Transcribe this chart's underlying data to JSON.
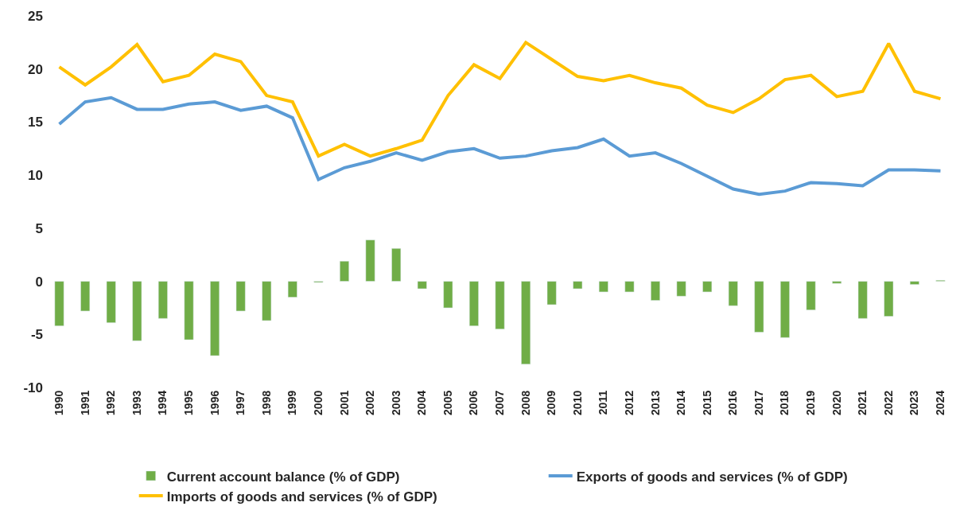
{
  "chart_data": {
    "type": "bar",
    "categories": [
      "1990",
      "1991",
      "1992",
      "1993",
      "1994",
      "1995",
      "1996",
      "1997",
      "1998",
      "1999",
      "2000",
      "2001",
      "2002",
      "2003",
      "2004",
      "2005",
      "2006",
      "2007",
      "2008",
      "2009",
      "2010",
      "2011",
      "2012",
      "2013",
      "2014",
      "2015",
      "2016",
      "2017",
      "2018",
      "2019",
      "2020",
      "2021",
      "2022",
      "2023",
      "2024"
    ],
    "series": [
      {
        "name": "Current account balance (% of GDP)",
        "color": "#70ad47",
        "values": [
          -4.2,
          -2.8,
          -3.9,
          -5.6,
          -3.5,
          -5.5,
          -7.0,
          -2.8,
          -3.7,
          -1.5,
          -0.1,
          1.9,
          3.9,
          3.1,
          -0.7,
          -2.5,
          -4.2,
          -4.5,
          -7.8,
          -2.2,
          -0.7,
          -1.0,
          -1.0,
          -1.8,
          -1.4,
          -1.0,
          -2.3,
          -4.8,
          -5.3,
          -2.7,
          -0.2,
          -3.5,
          -3.3,
          -0.3,
          0.1
        ]
      },
      {
        "name": "Exports of goods and services (% of GDP)",
        "type": "line",
        "color": "#5b9bd5",
        "values": [
          14.8,
          16.9,
          17.3,
          16.2,
          16.2,
          16.7,
          16.9,
          16.1,
          16.5,
          15.4,
          9.6,
          10.7,
          11.3,
          12.1,
          11.4,
          12.2,
          12.5,
          11.6,
          11.8,
          12.3,
          12.6,
          13.4,
          11.8,
          12.1,
          11.1,
          9.9,
          8.7,
          8.2,
          8.5,
          9.3,
          9.2,
          9.0,
          10.5,
          10.5,
          10.4
        ]
      },
      {
        "name": "Imports of goods and services (% of GDP)",
        "type": "line",
        "color": "#ffc000",
        "values": [
          20.2,
          18.5,
          20.2,
          22.3,
          18.8,
          19.4,
          21.4,
          20.7,
          17.5,
          16.9,
          11.8,
          12.9,
          11.8,
          12.5,
          13.3,
          17.5,
          20.4,
          19.1,
          22.5,
          20.9,
          19.3,
          18.9,
          19.4,
          18.7,
          18.2,
          16.6,
          15.9,
          17.2,
          19.0,
          19.4,
          17.4,
          17.9,
          22.4,
          17.9,
          17.2
        ]
      }
    ],
    "ylim": [
      -10,
      25
    ],
    "yticks": [
      -10,
      -5,
      0,
      5,
      10,
      15,
      20,
      25
    ],
    "legend": "bottom",
    "marker": "none",
    "line_style": "solid"
  }
}
